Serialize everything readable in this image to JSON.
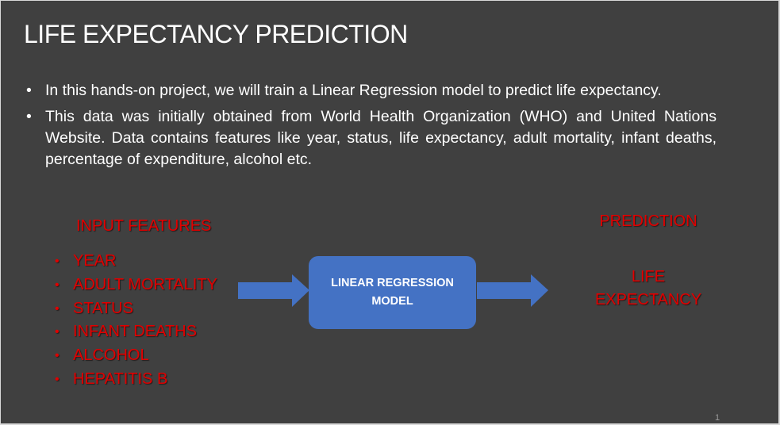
{
  "slide": {
    "title": "LIFE EXPECTANCY PREDICTION",
    "bullets": [
      "In this hands-on project, we will train a Linear Regression model to predict life expectancy.",
      "This data was initially obtained from World Health Organization (WHO) and United Nations Website. Data contains features like year, status, life expectancy, adult mortality, infant deaths, percentage of expenditure, alcohol etc."
    ],
    "diagram": {
      "input_heading": "INPUT FEATURES",
      "features": [
        "YEAR",
        "ADULT MORTALITY",
        "STATUS",
        "INFANT DEATHS",
        "ALCOHOL",
        "HEPATITIS B"
      ],
      "model_lines": [
        "LINEAR REGRESSION",
        "MODEL"
      ],
      "output_heading": "PREDICTION",
      "output_lines": [
        "LIFE",
        "EXPECTANCY"
      ]
    },
    "page_number": "1"
  }
}
